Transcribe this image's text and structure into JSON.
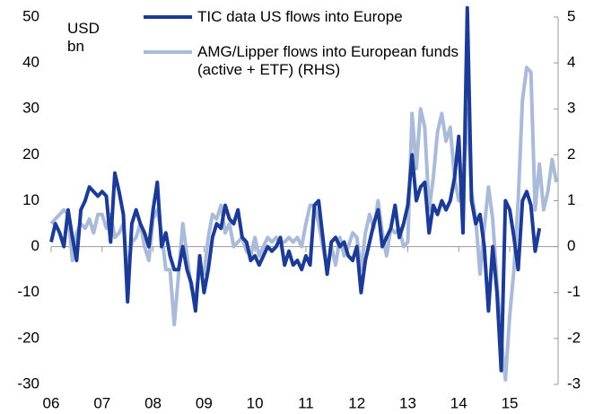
{
  "chart_data": {
    "type": "line",
    "y_label": "USD bn",
    "x": [
      2006.0,
      2006.083,
      2006.167,
      2006.25,
      2006.333,
      2006.417,
      2006.5,
      2006.583,
      2006.667,
      2006.75,
      2006.833,
      2006.917,
      2007.0,
      2007.083,
      2007.167,
      2007.25,
      2007.333,
      2007.417,
      2007.5,
      2007.583,
      2007.667,
      2007.75,
      2007.833,
      2007.917,
      2008.0,
      2008.083,
      2008.167,
      2008.25,
      2008.333,
      2008.417,
      2008.5,
      2008.583,
      2008.667,
      2008.75,
      2008.833,
      2008.917,
      2009.0,
      2009.083,
      2009.167,
      2009.25,
      2009.333,
      2009.417,
      2009.5,
      2009.583,
      2009.667,
      2009.75,
      2009.833,
      2009.917,
      2010.0,
      2010.083,
      2010.167,
      2010.25,
      2010.333,
      2010.417,
      2010.5,
      2010.583,
      2010.667,
      2010.75,
      2010.833,
      2010.917,
      2011.0,
      2011.083,
      2011.167,
      2011.25,
      2011.333,
      2011.417,
      2011.5,
      2011.583,
      2011.667,
      2011.75,
      2011.833,
      2011.917,
      2012.0,
      2012.083,
      2012.167,
      2012.25,
      2012.333,
      2012.417,
      2012.5,
      2012.583,
      2012.667,
      2012.75,
      2012.833,
      2012.917,
      2013.0,
      2013.083,
      2013.167,
      2013.25,
      2013.333,
      2013.417,
      2013.5,
      2013.583,
      2013.667,
      2013.75,
      2013.833,
      2013.917,
      2014.0,
      2014.083,
      2014.167,
      2014.25,
      2014.333,
      2014.417,
      2014.5,
      2014.583,
      2014.667,
      2014.75,
      2014.833,
      2014.917,
      2015.0,
      2015.083,
      2015.167,
      2015.25,
      2015.333,
      2015.417,
      2015.5,
      2015.583,
      2015.667,
      2015.75,
      2015.833,
      2015.917
    ],
    "series": [
      {
        "name": "TIC data US flows into Europe",
        "color": "#1b3b96",
        "axis": "y",
        "values": [
          1,
          5,
          3,
          0,
          8,
          2,
          -3,
          8,
          10,
          13,
          12,
          11,
          12,
          11,
          1,
          16,
          12,
          7,
          -12,
          5,
          8,
          5,
          3,
          0,
          8,
          14,
          0,
          3,
          -2,
          -5,
          -5,
          0,
          -5,
          -8,
          -14,
          -2,
          -10,
          -5,
          2,
          5,
          4,
          9,
          6,
          5,
          8,
          2,
          1,
          -3,
          -2,
          -4,
          -2,
          0,
          -1,
          0,
          2,
          -4,
          -1,
          -4,
          -3,
          -5,
          -2,
          -4,
          9,
          10,
          2,
          -6,
          1,
          2,
          0,
          1,
          -2,
          -3,
          0,
          -10,
          -3,
          1,
          5,
          8,
          0,
          2,
          4,
          9,
          2,
          5,
          9,
          20,
          10,
          13,
          14,
          3,
          9,
          7,
          10,
          8,
          10,
          15,
          24,
          3,
          52,
          10,
          5,
          7,
          0,
          -14,
          0,
          -10,
          -27,
          10,
          8,
          2,
          -5,
          10,
          12,
          9,
          -1,
          4,
          null,
          null,
          null,
          null
        ]
      },
      {
        "name": "AMG/Lipper flows into European funds (active + ETF) (RHS)",
        "color": "#aabad9",
        "axis": "y2",
        "values": [
          0.5,
          0.6,
          0.7,
          0.8,
          0.7,
          -0.3,
          0.3,
          0.5,
          0.4,
          0.6,
          0.3,
          0.7,
          0.7,
          0.4,
          0.7,
          0.2,
          0.3,
          0.5,
          -0.6,
          0.1,
          0.2,
          0.5,
          0,
          -0.3,
          0.6,
          0.8,
          0.3,
          -0.5,
          -0.5,
          -1.7,
          -0.6,
          0.5,
          -0.2,
          -0.9,
          -1.2,
          -0.4,
          -0.6,
          0.2,
          0.7,
          0.6,
          0.9,
          0.3,
          0.5,
          0,
          0.1,
          0.2,
          -0.1,
          -0.2,
          0.2,
          -0.2,
          0,
          0.2,
          0.1,
          0.2,
          0.1,
          0.1,
          0.2,
          0.1,
          0.2,
          0,
          0.5,
          0.9,
          0.9,
          0.5,
          0,
          -0.5,
          0,
          -0.4,
          0.2,
          -0.2,
          0,
          0.3,
          0.2,
          -0.5,
          0.3,
          0.7,
          0.4,
          1.0,
          0.3,
          -0.2,
          0.4,
          0.3,
          0.4,
          0,
          0.1,
          2.9,
          1.7,
          3.0,
          2.6,
          0.8,
          1.5,
          2.5,
          2.9,
          2.3,
          2.6,
          1.5,
          1.0,
          1.3,
          3.0,
          1.2,
          0.6,
          -0.6,
          0.4,
          1.3,
          0.6,
          -0.8,
          -2.0,
          -2.9,
          -1.5,
          -0.5,
          1.0,
          3.2,
          3.9,
          3.8,
          0.8,
          1.8,
          0.8,
          1.2,
          1.9,
          1.4
        ]
      }
    ],
    "xlim": [
      2006,
      2015.95
    ],
    "xticks": [
      {
        "value": 2006,
        "label": "06"
      },
      {
        "value": 2007,
        "label": "07"
      },
      {
        "value": 2008,
        "label": "08"
      },
      {
        "value": 2009,
        "label": "09"
      },
      {
        "value": 2010,
        "label": "10"
      },
      {
        "value": 2011,
        "label": "11"
      },
      {
        "value": 2012,
        "label": "12"
      },
      {
        "value": 2013,
        "label": "13"
      },
      {
        "value": 2014,
        "label": "14"
      },
      {
        "value": 2015,
        "label": "15"
      }
    ],
    "ylim": [
      -30,
      50
    ],
    "yticks": [
      -30,
      -20,
      -10,
      0,
      10,
      20,
      30,
      40,
      50
    ],
    "y2lim": [
      -3,
      5
    ],
    "y2ticks": [
      -3,
      -2,
      -1,
      0,
      1,
      2,
      3,
      4,
      5
    ],
    "legend": "top"
  }
}
